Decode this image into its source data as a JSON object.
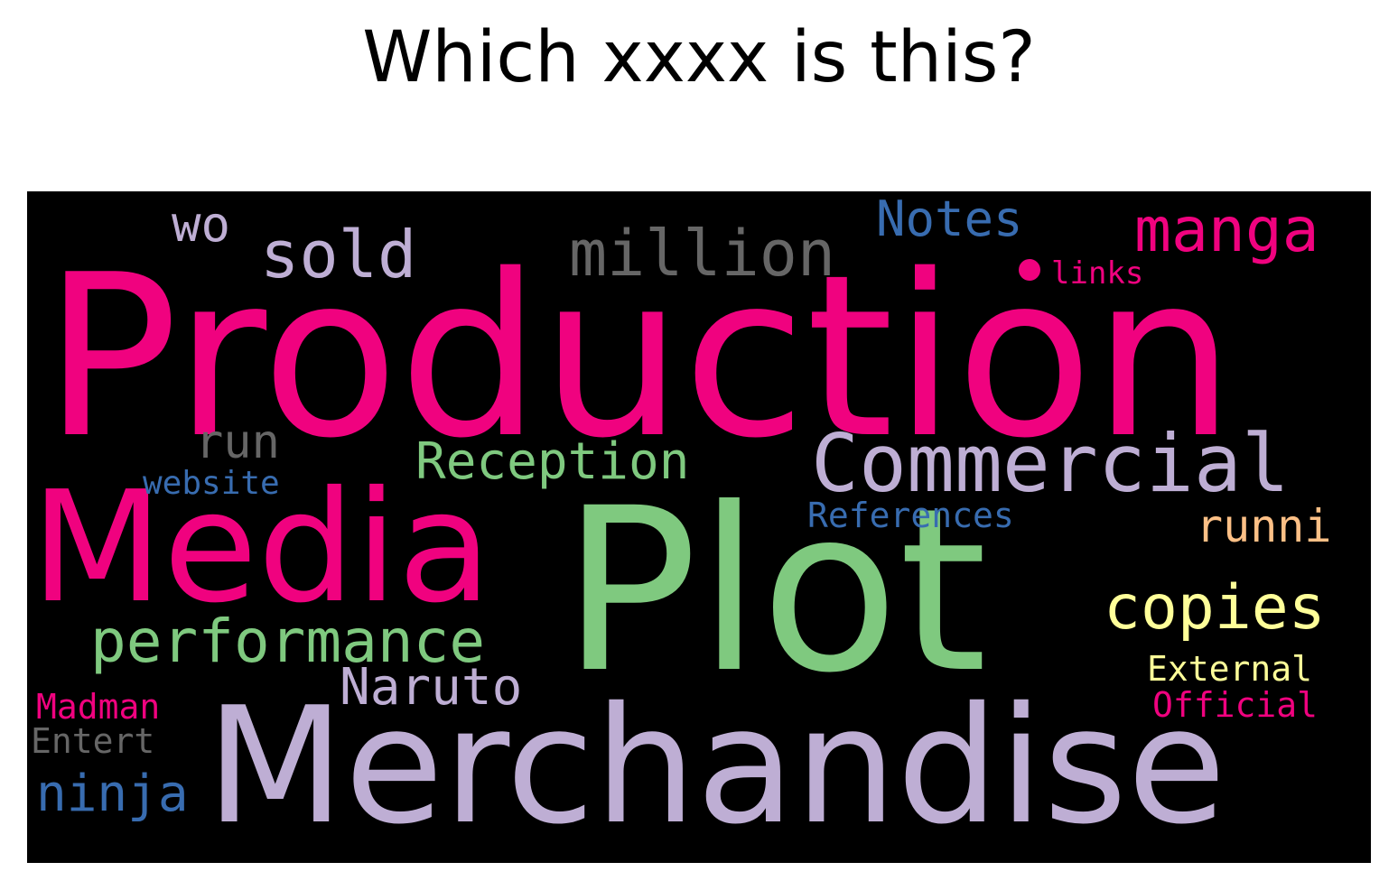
{
  "title": "Which xxxx is this?",
  "colors": {
    "background": "#000000",
    "pink": "#f0027f",
    "green": "#7fc97f",
    "lavender": "#beaed4",
    "blue": "#386cb0",
    "yellow": "#ffff99",
    "orange": "#fdc086",
    "gray": "#666666"
  },
  "words": [
    {
      "key": "production",
      "text": "Production",
      "color": "#f0027f"
    },
    {
      "key": "plot",
      "text": "Plot",
      "color": "#7fc97f"
    },
    {
      "key": "merchandise",
      "text": "Merchandise",
      "color": "#beaed4"
    },
    {
      "key": "media",
      "text": "Media",
      "color": "#f0027f"
    },
    {
      "key": "commercial",
      "text": "Commercial",
      "color": "#beaed4"
    },
    {
      "key": "performance",
      "text": "performance",
      "color": "#7fc97f"
    },
    {
      "key": "million",
      "text": "million",
      "color": "#666666"
    },
    {
      "key": "manga",
      "text": "manga",
      "color": "#f0027f"
    },
    {
      "key": "sold",
      "text": "sold",
      "color": "#beaed4"
    },
    {
      "key": "copies",
      "text": "copies",
      "color": "#ffff99"
    },
    {
      "key": "reception",
      "text": "Reception",
      "color": "#7fc97f"
    },
    {
      "key": "naruto",
      "text": "Naruto",
      "color": "#beaed4"
    },
    {
      "key": "notes",
      "text": "Notes",
      "color": "#386cb0"
    },
    {
      "key": "ninja",
      "text": "ninja",
      "color": "#386cb0"
    },
    {
      "key": "runni",
      "text": "runni",
      "color": "#fdc086"
    },
    {
      "key": "run",
      "text": "run",
      "color": "#666666"
    },
    {
      "key": "wo",
      "text": "wo",
      "color": "#beaed4"
    },
    {
      "key": "references",
      "text": "References",
      "color": "#386cb0"
    },
    {
      "key": "external",
      "text": "External",
      "color": "#ffff99"
    },
    {
      "key": "official",
      "text": "Official",
      "color": "#f0027f"
    },
    {
      "key": "website",
      "text": "website",
      "color": "#386cb0"
    },
    {
      "key": "madman",
      "text": "Madman",
      "color": "#f0027f"
    },
    {
      "key": "entert",
      "text": "Entert",
      "color": "#666666"
    },
    {
      "key": "links",
      "text": "links",
      "color": "#f0027f"
    }
  ]
}
